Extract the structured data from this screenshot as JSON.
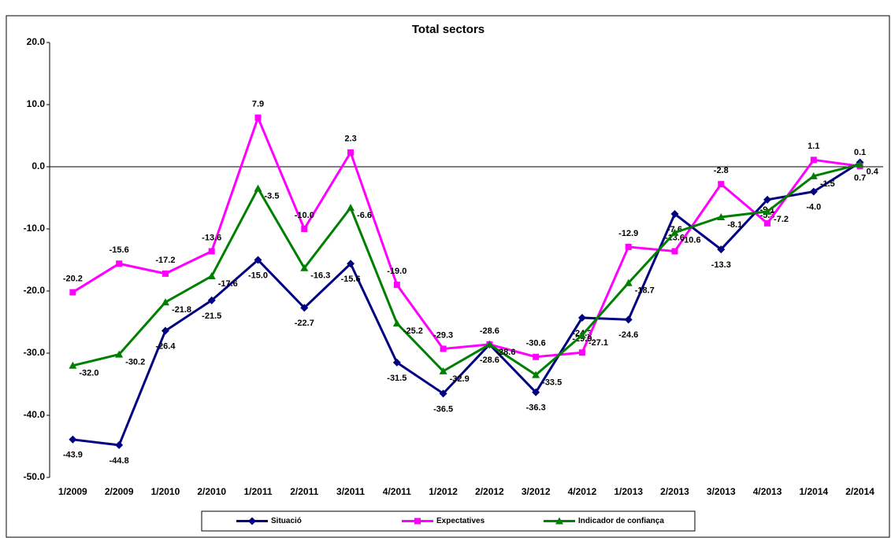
{
  "chart_data": {
    "type": "line",
    "title": "Total sectors",
    "categories": [
      "1/2009",
      "2/2009",
      "1/2010",
      "2/2010",
      "1/2011",
      "2/2011",
      "3/2011",
      "4/2011",
      "1/2012",
      "2/2012",
      "3/2012",
      "4/2012",
      "1/2013",
      "2/2013",
      "3/2013",
      "4/2013",
      "1/2014",
      "2/2014"
    ],
    "series": [
      {
        "name": "Situació",
        "color": "#000080",
        "marker": "diamond",
        "values": [
          -43.9,
          -44.8,
          -26.4,
          -21.5,
          -15.0,
          -22.7,
          -15.6,
          -31.5,
          -36.5,
          -28.6,
          -36.3,
          -24.3,
          -24.6,
          -7.6,
          -13.3,
          -5.3,
          -4.0,
          0.7
        ],
        "value_labels": [
          "-43.9",
          "-44.8",
          "-26.4",
          "-21.5",
          "-15.0",
          "-22.7",
          "-15.6",
          "-31.5",
          "-36.5",
          "-28.6",
          "-36.3",
          "-24.3",
          "-24.6",
          "-7.6",
          "-13.3",
          "-5.3",
          "-4.0",
          "0.7"
        ]
      },
      {
        "name": "Expectatives",
        "color": "#ff00ff",
        "marker": "square",
        "values": [
          -20.2,
          -15.6,
          -17.2,
          -13.6,
          7.9,
          -10.0,
          2.3,
          -19.0,
          -29.3,
          -28.6,
          -30.6,
          -29.9,
          -12.9,
          -13.6,
          -2.8,
          -9.1,
          1.1,
          0.1
        ],
        "value_labels": [
          "-20.2",
          "-15.6",
          "-17.2",
          "-13.6",
          "7.9",
          "-10.0",
          "2.3",
          "-19.0",
          "-29.3",
          "-28.6",
          "-30.6",
          "-29.9",
          "-12.9",
          "-13.6",
          "-2.8",
          "-9.1",
          "1.1",
          "0.1"
        ]
      },
      {
        "name": "Indicador de confiança",
        "color": "#008000",
        "marker": "triangle",
        "values": [
          -32.0,
          -30.2,
          -21.8,
          -17.6,
          -3.5,
          -16.3,
          -6.6,
          -25.2,
          -32.9,
          -28.6,
          -33.5,
          -27.1,
          -18.7,
          -10.6,
          -8.1,
          -7.2,
          -1.5,
          0.4
        ],
        "value_labels": [
          "-32.0",
          "-30.2",
          "-21.8",
          "-17.6",
          "-3.5",
          "-16.3",
          "-6.6",
          "-25.2",
          "-32.9",
          "-28.6",
          "-33.5",
          "-27.1",
          "-18.7",
          "-10.6",
          "-8.1",
          "-7.2",
          "-1.5",
          "0.4"
        ]
      }
    ],
    "ylim": [
      -50,
      20
    ],
    "yticks": [
      {
        "value": -50,
        "label": "-50.0"
      },
      {
        "value": -40,
        "label": "-40.0"
      },
      {
        "value": -30,
        "label": "-30.0"
      },
      {
        "value": -20,
        "label": "-20.0"
      },
      {
        "value": -10,
        "label": "-10.0"
      },
      {
        "value": 0,
        "label": "0.0"
      },
      {
        "value": 10,
        "label": "10.0"
      },
      {
        "value": 20,
        "label": "20.0"
      }
    ],
    "grid": false,
    "legend": "bottom"
  }
}
